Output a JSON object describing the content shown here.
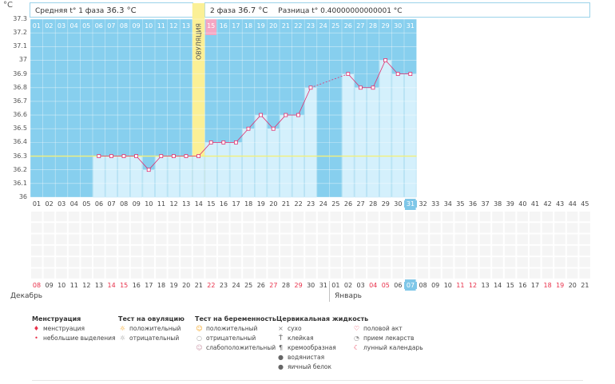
{
  "unit": "°C",
  "header": {
    "phase1": "Средняя t° 1 фаза",
    "phase1_value": "36.3 °C",
    "phase2": "2 фаза",
    "phase2_value": "36.7 °C",
    "diff": "Разница t°",
    "diff_value": "0.40000000000001 °C"
  },
  "ovulation_label": "ОВУЛЯЦИЯ",
  "chart_data": {
    "type": "line",
    "title": "",
    "ylim": [
      36,
      37.3
    ],
    "yticks": [
      36,
      36.1,
      36.2,
      36.3,
      36.4,
      36.5,
      36.6,
      36.7,
      36.8,
      36.9,
      37,
      37.1,
      37.2,
      37.3
    ],
    "ytick_labels": [
      "36",
      "36.1",
      "36.2",
      "36.3",
      "36.4",
      "36.5",
      "36.6",
      "36.7",
      "36.8",
      "36.9",
      "37",
      "37.1",
      "37.2",
      "37.3"
    ],
    "coverline": 36.3,
    "ovulation_day": 14,
    "highlight_day": 15,
    "cycle_days": [
      "01",
      "02",
      "03",
      "04",
      "05",
      "06",
      "07",
      "08",
      "09",
      "10",
      "11",
      "12",
      "13",
      "14",
      "15",
      "16",
      "17",
      "18",
      "19",
      "20",
      "21",
      "22",
      "23",
      "24",
      "25",
      "26",
      "27",
      "28",
      "29",
      "30",
      "31",
      "32",
      "33",
      "34",
      "35",
      "36",
      "37",
      "38",
      "39",
      "40",
      "41",
      "42",
      "43",
      "44",
      "45"
    ],
    "top_dates": [
      "01",
      "02",
      "03",
      "04",
      "05",
      "06",
      "07",
      "08",
      "09",
      "10",
      "11",
      "12",
      "13",
      "14",
      "15",
      "16",
      "17",
      "18",
      "19",
      "20",
      "21",
      "22",
      "23",
      "24",
      "25",
      "26",
      "27",
      "28",
      "29",
      "30",
      "31"
    ],
    "temperatures": [
      null,
      null,
      null,
      null,
      null,
      36.3,
      36.3,
      36.3,
      36.3,
      36.2,
      36.3,
      36.3,
      36.3,
      36.3,
      36.4,
      36.4,
      36.4,
      36.5,
      36.6,
      36.5,
      36.6,
      36.6,
      36.8,
      null,
      null,
      36.9,
      36.8,
      36.8,
      37.0,
      36.9,
      36.9
    ],
    "dashed_segments": [
      [
        23,
        26
      ]
    ]
  },
  "calendar": {
    "dates": [
      "08",
      "09",
      "10",
      "11",
      "12",
      "13",
      "14",
      "15",
      "16",
      "17",
      "18",
      "19",
      "20",
      "21",
      "22",
      "23",
      "24",
      "25",
      "26",
      "27",
      "28",
      "29",
      "30",
      "31",
      "01",
      "02",
      "03",
      "04",
      "05",
      "06",
      "07",
      "08",
      "09",
      "10",
      "11",
      "12",
      "13",
      "14",
      "15",
      "16",
      "17",
      "18",
      "19",
      "20",
      "21"
    ],
    "red": [
      true,
      false,
      false,
      false,
      false,
      false,
      true,
      true,
      false,
      false,
      false,
      false,
      false,
      false,
      true,
      false,
      false,
      false,
      false,
      true,
      false,
      true,
      false,
      false,
      false,
      false,
      false,
      true,
      true,
      false,
      false,
      false,
      false,
      false,
      true,
      true,
      false,
      false,
      false,
      false,
      false,
      true,
      true,
      false,
      false
    ],
    "month_dec": "Декабрь",
    "month_jan": "Январь",
    "highlight_index": 30
  },
  "legend": {
    "menstruation": {
      "title": "Менструация",
      "items": [
        "менструация",
        "небольшие выделения"
      ]
    },
    "ovulation_test": {
      "title": "Тест на овуляцию",
      "items": [
        "положительный",
        "отрицательный"
      ]
    },
    "pregnancy_test": {
      "title": "Тест на беременность",
      "items": [
        "положительный",
        "отрицательный",
        "слабоположительный"
      ]
    },
    "cervical": {
      "title": "Цервикальная жидкость",
      "items": [
        "сухо",
        "клейкая",
        "кремообразная",
        "водянистая",
        "яичный белок"
      ]
    },
    "other": {
      "items": [
        "половой акт",
        "прием лекарств",
        "лунный календарь"
      ]
    },
    "colors": {
      "menses": "#e8304a",
      "sun": "#f5c842",
      "pink": "#e87aa0"
    }
  }
}
